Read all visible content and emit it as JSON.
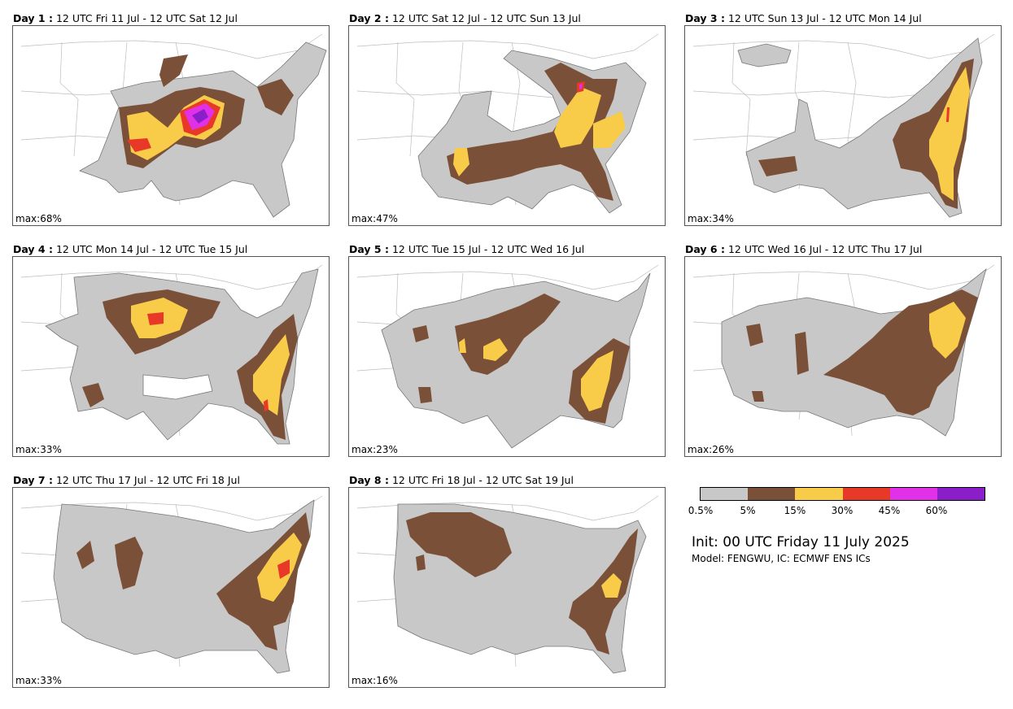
{
  "colors": {
    "gray": "#c8c8c8",
    "brown": "#7b5038",
    "yellow": "#f8cc48",
    "red": "#e83828",
    "magenta": "#e030e8",
    "purple": "#8a1ec8"
  },
  "panels": [
    {
      "day": "Day 1 :",
      "period": "12 UTC Fri 11 Jul - 12 UTC Sat 12 Jul",
      "max": "max:68%"
    },
    {
      "day": "Day 2 :",
      "period": "12 UTC Sat 12 Jul - 12 UTC Sun 13 Jul",
      "max": "max:47%"
    },
    {
      "day": "Day 3 :",
      "period": "12 UTC Sun 13 Jul - 12 UTC Mon 14 Jul",
      "max": "max:34%"
    },
    {
      "day": "Day 4 :",
      "period": "12 UTC Mon 14 Jul - 12 UTC Tue 15 Jul",
      "max": "max:33%"
    },
    {
      "day": "Day 5 :",
      "period": "12 UTC Tue 15 Jul - 12 UTC Wed 16 Jul",
      "max": "max:23%"
    },
    {
      "day": "Day 6 :",
      "period": "12 UTC Wed 16 Jul - 12 UTC Thu 17 Jul",
      "max": "max:26%"
    },
    {
      "day": "Day 7 :",
      "period": "12 UTC Thu 17 Jul - 12 UTC Fri 18 Jul",
      "max": "max:33%"
    },
    {
      "day": "Day 8 :",
      "period": "12 UTC Fri 18 Jul - 12 UTC Sat 19 Jul",
      "max": "max:16%"
    }
  ],
  "colorbar": {
    "ticks": [
      "0.5%",
      "5%",
      "15%",
      "30%",
      "45%",
      "60%"
    ]
  },
  "init_text": "Init: 00 UTC Friday 11 July 2025",
  "model_text": "Model: FENGWU, IC: ECMWF ENS ICs"
}
